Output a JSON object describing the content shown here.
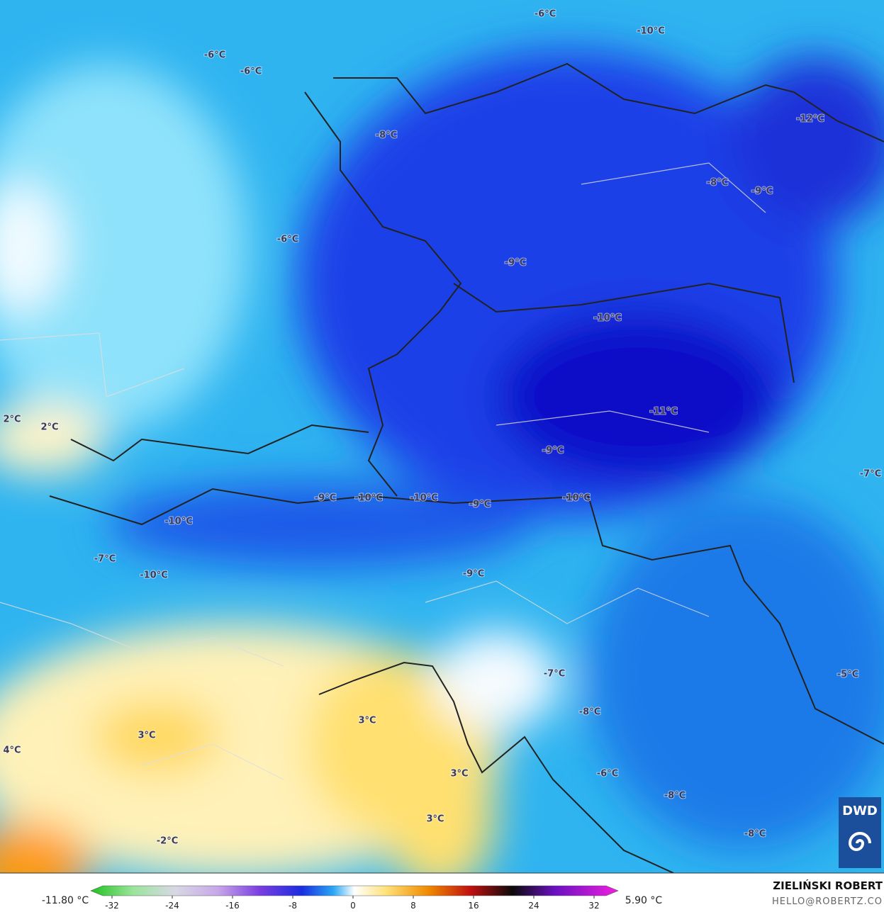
{
  "map": {
    "labels": [
      "-6°C",
      "-10°C",
      "-6°C",
      "-6°C",
      "-12°C",
      "-8°C",
      "-8°C",
      "-9°C",
      "-6°C",
      "-9°C",
      "-10°C",
      "2°C",
      "2°C",
      "-11°C",
      "-9°C",
      "-7°C",
      "-9°C",
      "-10°C",
      "-10°C",
      "-9°C",
      "-10°C",
      "-10°C",
      "-7°C",
      "-10°C",
      "-9°C",
      "-7°C",
      "-5°C",
      "-8°C",
      "3°C",
      "3°C",
      "4°C",
      "3°C",
      "-6°C",
      "-8°C",
      "3°C",
      "-8°C",
      "-2°C"
    ],
    "logo": "DWD"
  },
  "colorbar": {
    "min_label": "-11.80 °C",
    "max_label": "5.90 °C",
    "ticks": [
      -32,
      -24,
      -16,
      -8,
      0,
      8,
      16,
      24,
      32
    ]
  },
  "footer": {
    "author": "ZIELIŃSKI ROBERT",
    "contact": "HELLO@ROBERTZ.CO"
  }
}
